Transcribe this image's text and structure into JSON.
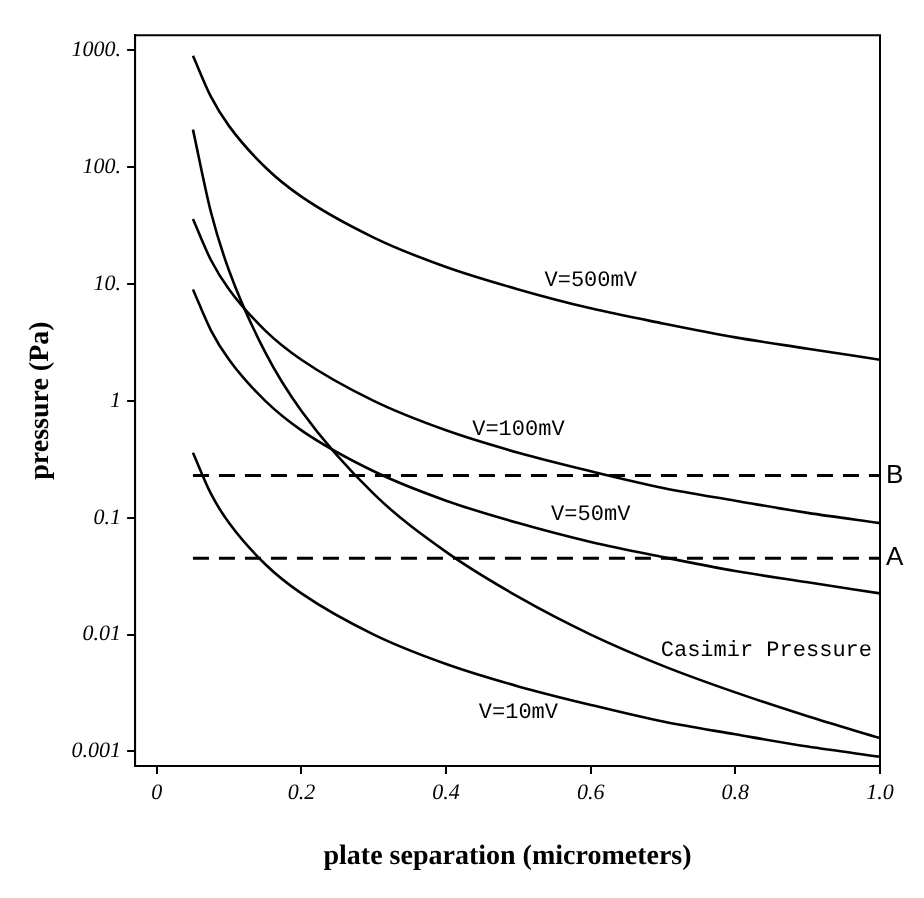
{
  "chart_data": {
    "type": "line",
    "xlabel": "plate separation (micrometers)",
    "ylabel": "pressure (Pa)",
    "x": [
      0.05,
      0.075,
      0.1,
      0.15,
      0.2,
      0.3,
      0.4,
      0.5,
      0.6,
      0.7,
      0.8,
      0.9,
      1.0
    ],
    "series": [
      {
        "name": "V=500mV",
        "color": "#000000",
        "values": [
          900,
          400,
          225,
          100,
          56,
          25,
          14,
          9,
          6.2,
          4.6,
          3.5,
          2.8,
          2.25
        ]
      },
      {
        "name": "V=100mV",
        "color": "#000000",
        "values": [
          36,
          16,
          9,
          4,
          2.25,
          1,
          0.56,
          0.36,
          0.25,
          0.18,
          0.14,
          0.11,
          0.09
        ]
      },
      {
        "name": "V=50mV",
        "color": "#000000",
        "values": [
          9,
          4,
          2.25,
          1,
          0.56,
          0.25,
          0.14,
          0.09,
          0.062,
          0.046,
          0.035,
          0.028,
          0.0225
        ]
      },
      {
        "name": "V=10mV",
        "color": "#000000",
        "values": [
          0.36,
          0.16,
          0.09,
          0.04,
          0.0225,
          0.01,
          0.0056,
          0.0036,
          0.0025,
          0.0018,
          0.0014,
          0.0011,
          0.0009
        ]
      },
      {
        "name": "Casimir Pressure",
        "color": "#000000",
        "values": [
          210,
          41,
          13,
          2.6,
          0.82,
          0.16,
          0.051,
          0.021,
          0.01,
          0.0054,
          0.0032,
          0.002,
          0.0013
        ]
      }
    ],
    "ref_lines": [
      {
        "axis": "y",
        "value": 0.23,
        "label": "B",
        "line_style": "dashed"
      },
      {
        "axis": "y",
        "value": 0.045,
        "label": "A",
        "line_style": "dashed"
      }
    ],
    "log": "y",
    "grid": false,
    "legend": false,
    "marker": "none",
    "line_style": "solid",
    "xlim": [
      -0.03,
      1.0
    ],
    "xticks": [
      0,
      0.2,
      0.4,
      0.6,
      0.8,
      {
        "value": 1.0,
        "label": "1.0"
      }
    ],
    "ylim": [
      0.00075,
      1350
    ],
    "yticks": [
      {
        "value": 0.001,
        "label": "0.001"
      },
      0.01,
      0.1,
      1,
      {
        "value": 10,
        "label": "10."
      },
      {
        "value": 100,
        "label": "100."
      },
      {
        "value": 1000,
        "label": "1000."
      }
    ]
  }
}
